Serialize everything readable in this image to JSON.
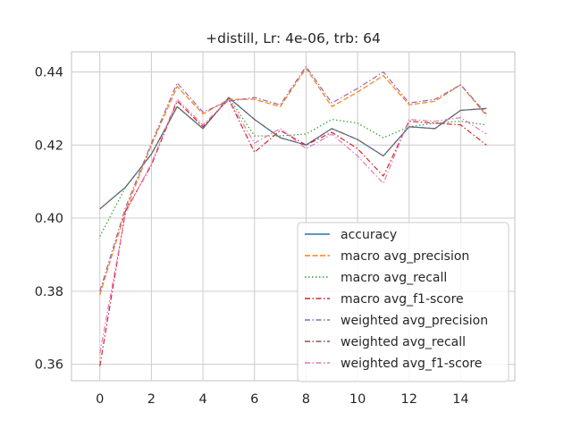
{
  "chart_data": {
    "type": "line",
    "title": "+distill, Lr: 4e-06, trb: 64",
    "xlabel": "",
    "ylabel": "",
    "xlim": [
      -1.1,
      16.1
    ],
    "ylim": [
      0.3555,
      0.4455
    ],
    "xticks": [
      0,
      2,
      4,
      6,
      8,
      10,
      12,
      14
    ],
    "xtick_labels": [
      "0",
      "2",
      "4",
      "6",
      "8",
      "10",
      "12",
      "14"
    ],
    "yticks": [
      0.36,
      0.38,
      0.4,
      0.42,
      0.44
    ],
    "ytick_labels": [
      "0.36",
      "0.38",
      "0.40",
      "0.42",
      "0.44"
    ],
    "grid": true,
    "legend_position": "lower-right",
    "x": [
      0,
      1,
      2,
      3,
      4,
      5,
      6,
      7,
      8,
      9,
      10,
      11,
      12,
      13,
      14,
      15
    ],
    "series": [
      {
        "name": "accuracy",
        "color": "#1f77b4",
        "dash": "solid",
        "values": [
          0.4025,
          0.4085,
          0.4175,
          0.4305,
          0.4245,
          0.433,
          0.427,
          0.422,
          0.42,
          0.4245,
          0.4215,
          0.417,
          0.425,
          0.4245,
          0.4295,
          0.43
        ]
      },
      {
        "name": "macro avg_precision",
        "color": "#ff7f0e",
        "dash": "dashed",
        "values": [
          0.379,
          0.402,
          0.42,
          0.436,
          0.4285,
          0.4325,
          0.4325,
          0.4305,
          0.441,
          0.4305,
          0.4345,
          0.439,
          0.431,
          0.432,
          0.4365,
          0.428
        ]
      },
      {
        "name": "macro avg_recall",
        "color": "#2ca02c",
        "dash": "dotted",
        "values": [
          0.395,
          0.4085,
          0.4175,
          0.4305,
          0.4245,
          0.433,
          0.4225,
          0.4225,
          0.423,
          0.427,
          0.426,
          0.422,
          0.425,
          0.426,
          0.4265,
          0.4255
        ]
      },
      {
        "name": "macro avg_f1-score",
        "color": "#d62728",
        "dash": "dashdot",
        "values": [
          0.3595,
          0.402,
          0.4145,
          0.432,
          0.425,
          0.4325,
          0.418,
          0.424,
          0.42,
          0.4235,
          0.419,
          0.4115,
          0.4265,
          0.426,
          0.4255,
          0.42
        ]
      },
      {
        "name": "weighted avg_precision",
        "color": "#9467bd",
        "dash": "dashdot",
        "values": [
          0.38,
          0.403,
          0.4205,
          0.437,
          0.429,
          0.432,
          0.433,
          0.431,
          0.4415,
          0.4315,
          0.4355,
          0.44,
          0.4315,
          0.4325,
          0.4365,
          0.4285
        ]
      },
      {
        "name": "weighted avg_recall",
        "color": "#8c564b",
        "dash": "dashdot",
        "values": [
          0.4025,
          0.4085,
          0.4175,
          0.4305,
          0.4245,
          0.433,
          0.427,
          0.422,
          0.42,
          0.4245,
          0.4215,
          0.417,
          0.425,
          0.4245,
          0.4295,
          0.43
        ]
      },
      {
        "name": "weighted avg_f1-score",
        "color": "#e377c2",
        "dash": "dashdot",
        "values": [
          0.363,
          0.4015,
          0.415,
          0.4325,
          0.4255,
          0.4325,
          0.4205,
          0.4245,
          0.419,
          0.423,
          0.417,
          0.4095,
          0.427,
          0.4265,
          0.4275,
          0.423
        ]
      }
    ]
  }
}
